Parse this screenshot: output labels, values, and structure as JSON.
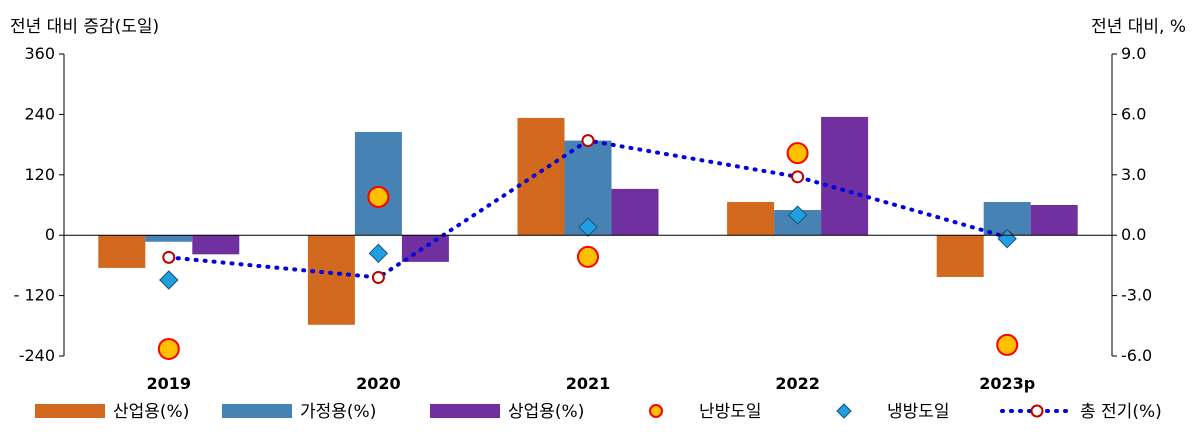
{
  "chart_data": {
    "type": "bar",
    "categories": [
      "2019",
      "2020",
      "2021",
      "2022",
      "2023p"
    ],
    "left_axis": {
      "title": "전년 대비 증감(도일)",
      "ylim": [
        -240,
        360
      ],
      "ticks": [
        -240,
        -120,
        0,
        120,
        240,
        360
      ],
      "tick_labels": [
        "-240",
        "- 120",
        "0",
        "120",
        "240",
        "360"
      ]
    },
    "right_axis": {
      "title": "전년 대비, %",
      "ylim": [
        -6,
        9
      ],
      "ticks": [
        -6,
        -3,
        0,
        3,
        6,
        9
      ],
      "tick_labels": [
        "-6.0",
        "-3.0",
        "0.0",
        "3.0",
        "6.0",
        "9.0"
      ]
    },
    "series": [
      {
        "name": "산업용(%)",
        "kind": "bar",
        "axis": "left",
        "color": "#D2691E",
        "values": [
          -65,
          -178,
          233,
          66,
          -83
        ]
      },
      {
        "name": "가정용(%)",
        "kind": "bar",
        "axis": "left",
        "color": "#4682B4",
        "values": [
          -13,
          205,
          188,
          50,
          66
        ]
      },
      {
        "name": "상업용(%)",
        "kind": "bar",
        "axis": "left",
        "color": "#7030A0",
        "values": [
          -38,
          -53,
          92,
          235,
          60
        ]
      },
      {
        "name": "난방도일",
        "kind": "marker",
        "shape": "circle",
        "axis": "left",
        "color": "#FFC000",
        "stroke": "#FF0000",
        "values": [
          -226,
          76,
          -43,
          163,
          -218
        ]
      },
      {
        "name": "냉방도일",
        "kind": "marker",
        "shape": "diamond",
        "axis": "left",
        "color": "#1EA0E0",
        "stroke": "#1F4E79",
        "values": [
          -89,
          -36,
          16,
          40,
          -7
        ]
      },
      {
        "name": "총 전기(%)",
        "kind": "line",
        "axis": "right",
        "color": "#0000E0",
        "marker_stroke": "#C00000",
        "values": [
          -1.1,
          -2.1,
          4.7,
          2.9,
          -0.1
        ]
      }
    ],
    "legend_position": "bottom"
  }
}
